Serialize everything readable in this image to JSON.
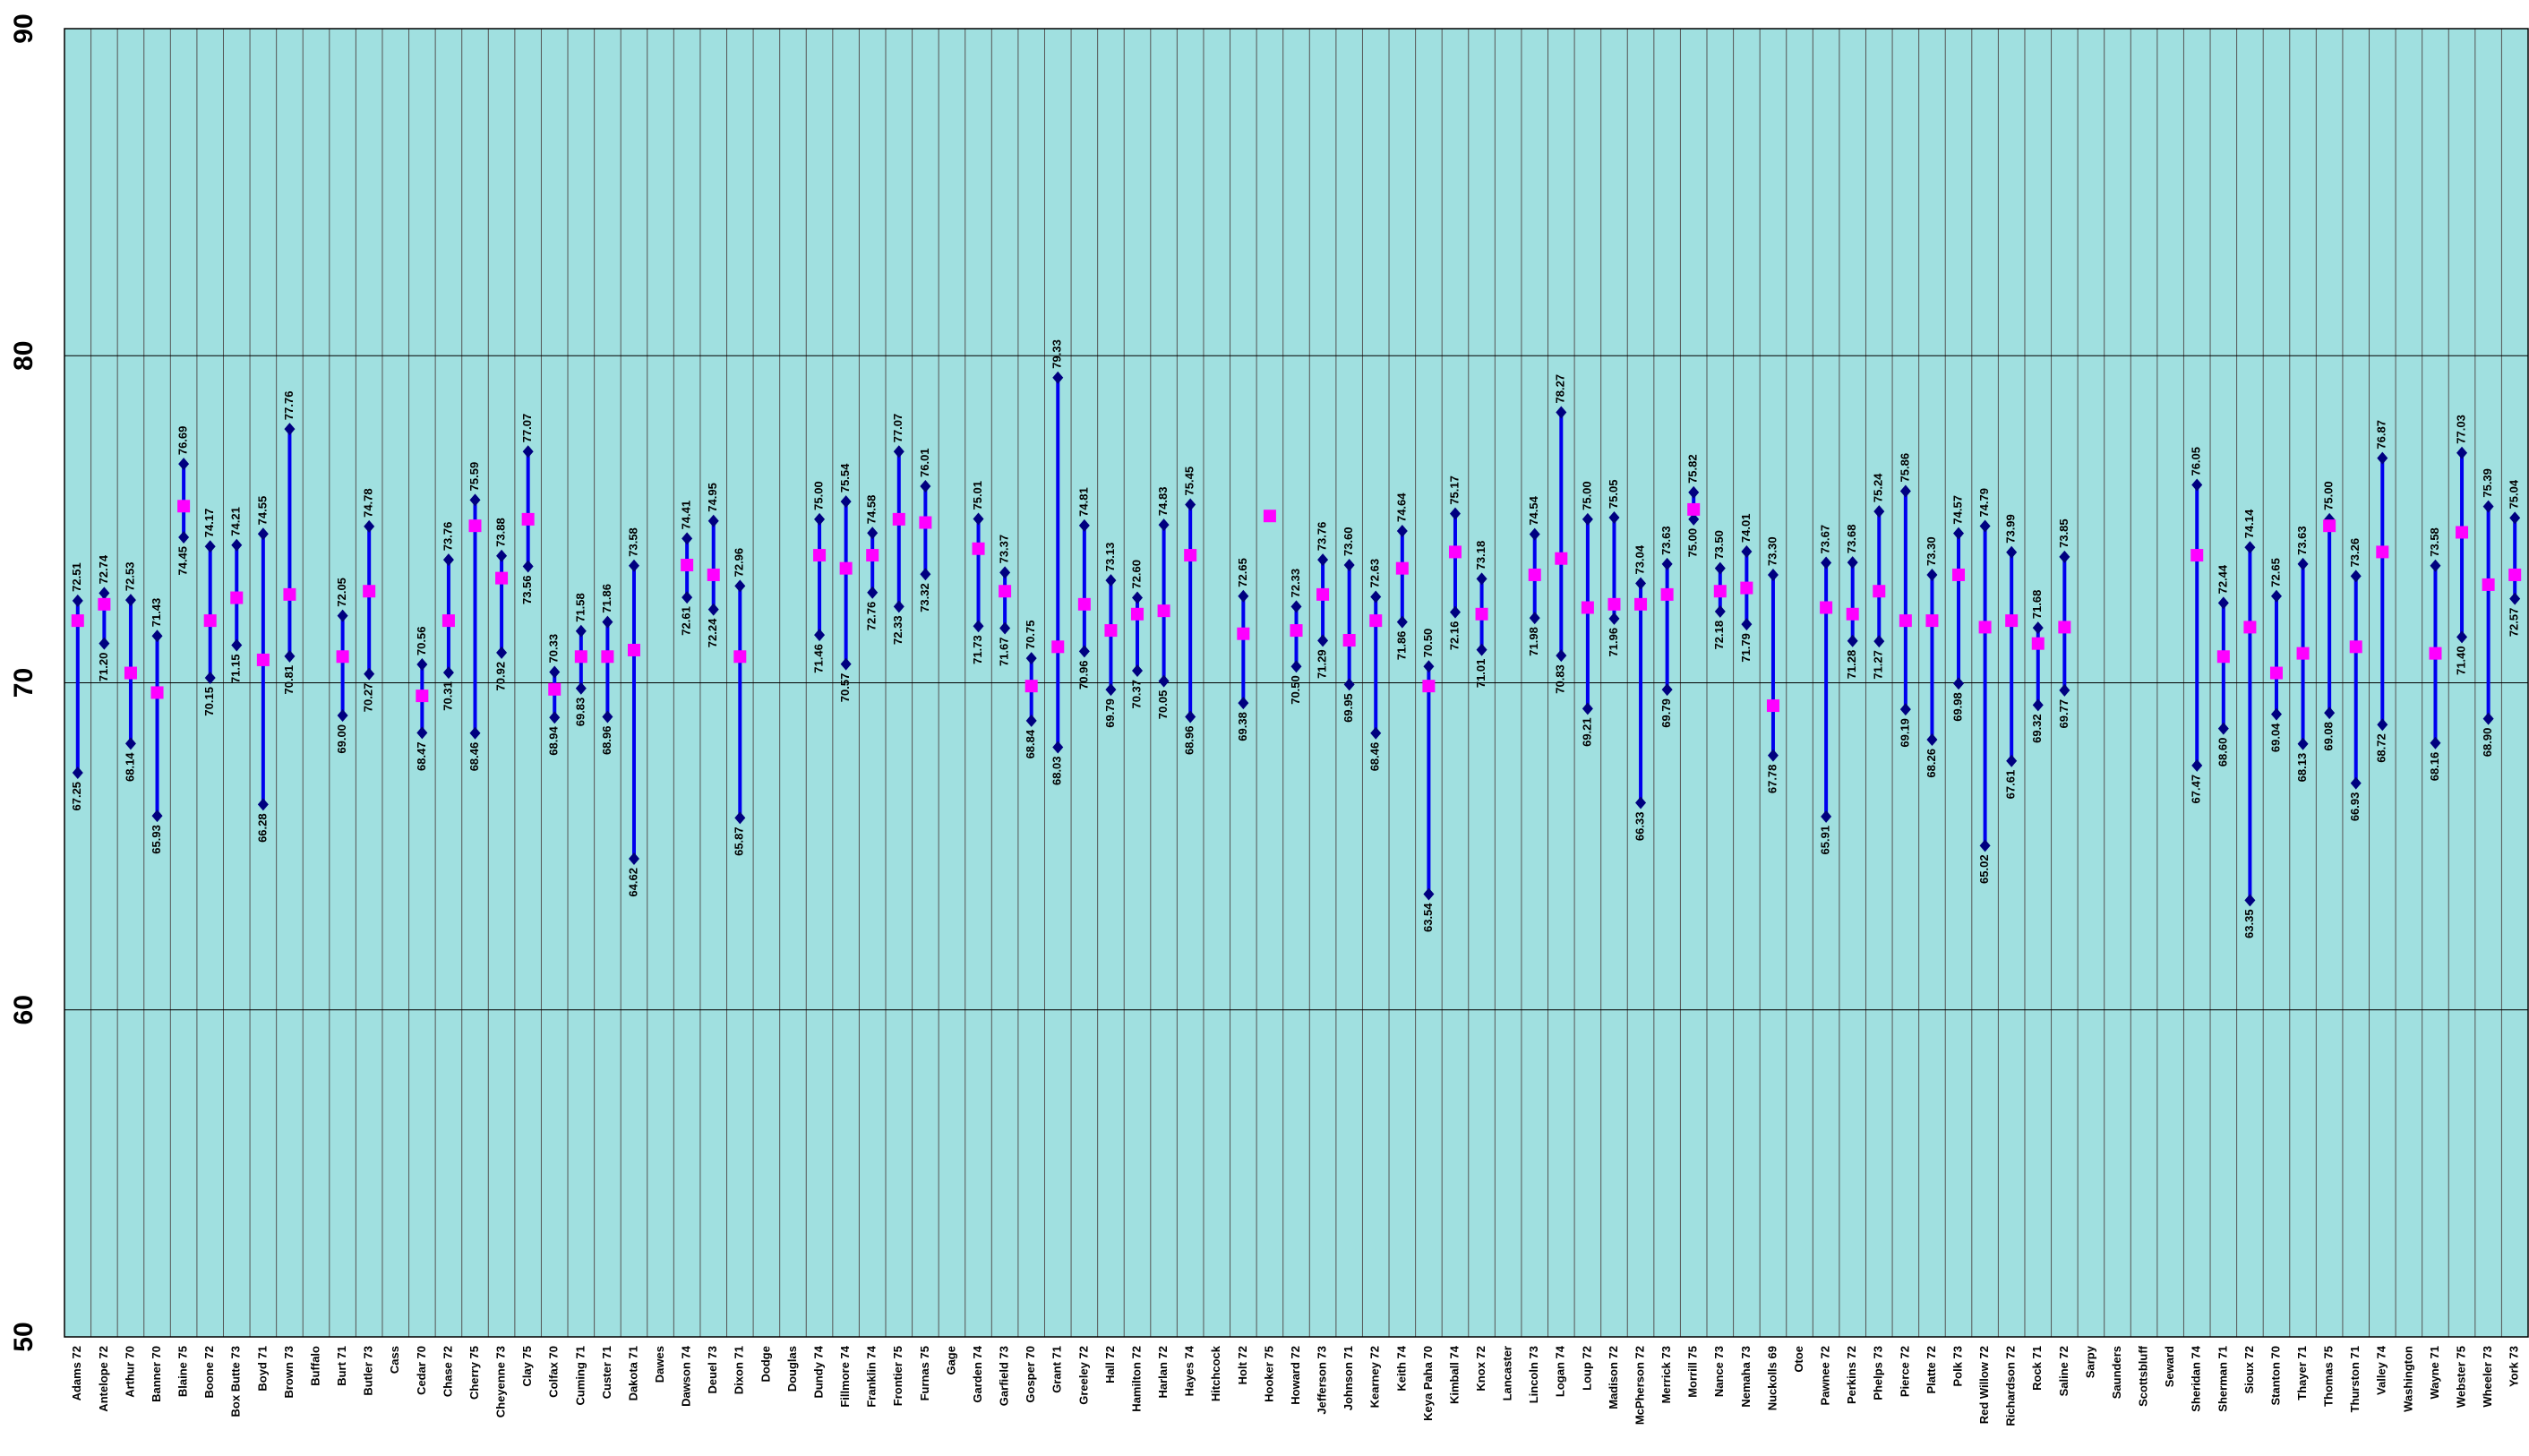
{
  "chart_data": {
    "type": "hilo",
    "categories": [
      "Adams 72",
      "Antelope 72",
      "Arthur 70",
      "Banner 70",
      "Blaine 75",
      "Boone 72",
      "Box Butte 73",
      "Boyd 71",
      "Brown 73",
      "Buffalo",
      "Burt 71",
      "Butler 73",
      "Cass",
      "Cedar 70",
      "Chase 72",
      "Cherry 75",
      "Cheyenne 73",
      "Clay 75",
      "Colfax 70",
      "Cuming 71",
      "Custer 71",
      "Dakota 71",
      "Dawes",
      "Dawson 74",
      "Deuel 73",
      "Dixon 71",
      "Dodge",
      "Douglas",
      "Dundy 74",
      "Fillmore 74",
      "Franklin 74",
      "Frontier 75",
      "Furnas 75",
      "Gage",
      "Garden 74",
      "Garfield 73",
      "Gosper 70",
      "Grant 71",
      "Greeley 72",
      "Hall 72",
      "Hamilton 72",
      "Harlan 72",
      "Hayes 74",
      "Hitchcock",
      "Holt 72",
      "Hooker 75",
      "Howard 72",
      "Jefferson 73",
      "Johnson 71",
      "Kearney 72",
      "Keith 74",
      "Keya Paha 70",
      "Kimball 74",
      "Knox 72",
      "Lancaster",
      "Lincoln 73",
      "Logan 74",
      "Loup 72",
      "Madison 72",
      "McPherson 72",
      "Merrick 73",
      "Morrill 75",
      "Nance 73",
      "Nemaha 73",
      "Nuckolls 69",
      "Otoe",
      "Pawnee 72",
      "Perkins 72",
      "Phelps 73",
      "Pierce 72",
      "Platte 72",
      "Polk 73",
      "Red Willow 72",
      "Richardson 72",
      "Rock 71",
      "Saline 72",
      "Sarpy",
      "Saunders",
      "Scottsbluff",
      "Seward",
      "Sheridan 74",
      "Sherman 71",
      "Sioux 72",
      "Stanton 70",
      "Thayer 71",
      "Thomas 75",
      "Thurston 71",
      "Valley 74",
      "Washington",
      "Wayne 71",
      "Webster 75",
      "Wheeler 73",
      "York 73"
    ],
    "line_color": "#0000ee",
    "series": [
      {
        "color": "#000080",
        "marker": "diamond",
        "values": [
          72.51,
          72.74,
          72.53,
          71.43,
          76.69,
          74.17,
          74.21,
          74.55,
          77.76,
          null,
          72.05,
          74.78,
          null,
          70.56,
          73.76,
          75.59,
          73.88,
          77.07,
          70.33,
          71.58,
          71.86,
          73.58,
          null,
          74.41,
          74.95,
          72.96,
          null,
          null,
          75.0,
          75.54,
          74.58,
          77.07,
          76.01,
          null,
          75.01,
          73.37,
          70.75,
          79.33,
          74.81,
          73.13,
          72.6,
          74.83,
          75.45,
          null,
          72.65,
          null,
          72.33,
          73.76,
          73.6,
          72.63,
          74.64,
          70.5,
          75.17,
          73.18,
          null,
          74.54,
          78.27,
          75.0,
          75.05,
          73.04,
          73.63,
          75.82,
          73.5,
          74.01,
          73.3,
          null,
          73.67,
          73.68,
          75.24,
          75.86,
          73.3,
          74.57,
          74.79,
          73.99,
          71.68,
          73.85,
          null,
          null,
          null,
          null,
          76.05,
          72.44,
          74.14,
          72.65,
          73.63,
          75.0,
          73.26,
          76.87,
          null,
          73.58,
          77.03,
          75.39,
          75.04
        ],
        "value_labels": [
          "72.51",
          "72.74",
          "72.53",
          "71.43",
          "76.69",
          "74.17",
          "74.21",
          "74.55",
          "77.76",
          null,
          "72.05",
          "74.78",
          null,
          "70.56",
          "73.76",
          "75.59",
          "73.88",
          "77.07",
          "70.33",
          "71.58",
          "71.86",
          "73.58",
          null,
          "74.41",
          "74.95",
          "72.96",
          null,
          null,
          "75.00",
          "75.54",
          "74.58",
          "77.07",
          "76.01",
          null,
          "75.01",
          "73.37",
          "70.75",
          "79.33",
          "74.81",
          "73.13",
          "72.60",
          "74.83",
          "75.45",
          null,
          "72.65",
          null,
          "72.33",
          "73.76",
          "73.60",
          "72.63",
          "74.64",
          "70.50",
          "75.17",
          "73.18",
          null,
          "74.54",
          "78.27",
          "75.00",
          "75.05",
          "73.04",
          "73.63",
          "75.82",
          "73.50",
          "74.01",
          "73.30",
          null,
          "73.67",
          "73.68",
          "75.24",
          "75.86",
          "73.30",
          "74.57",
          "74.79",
          "73.99",
          "71.68",
          "73.85",
          null,
          null,
          null,
          null,
          "76.05",
          "72.44",
          "74.14",
          "72.65",
          "73.63",
          "75.00",
          "73.26",
          "76.87",
          null,
          "73.58",
          "77.03",
          "75.39",
          "75.04"
        ]
      },
      {
        "color": "#000080",
        "marker": "diamond",
        "values": [
          67.25,
          71.2,
          68.14,
          65.93,
          74.45,
          70.15,
          71.15,
          66.28,
          70.81,
          null,
          69.0,
          70.27,
          null,
          68.47,
          70.31,
          68.46,
          70.92,
          73.56,
          68.94,
          69.83,
          68.96,
          64.62,
          null,
          72.61,
          72.24,
          65.87,
          null,
          null,
          71.46,
          70.57,
          72.76,
          72.33,
          73.32,
          null,
          71.73,
          71.67,
          68.84,
          68.03,
          70.96,
          69.79,
          70.37,
          70.05,
          68.96,
          null,
          69.38,
          null,
          70.5,
          71.29,
          69.95,
          68.46,
          71.86,
          63.54,
          72.16,
          71.01,
          null,
          71.98,
          70.83,
          69.21,
          71.96,
          66.33,
          69.79,
          75.0,
          72.18,
          71.79,
          67.78,
          null,
          65.91,
          71.28,
          71.27,
          69.19,
          68.26,
          69.98,
          65.02,
          67.61,
          69.32,
          69.77,
          null,
          null,
          null,
          null,
          67.47,
          68.6,
          63.35,
          69.04,
          68.13,
          69.08,
          66.93,
          68.72,
          null,
          68.16,
          71.4,
          68.9,
          72.57
        ],
        "value_labels": [
          "67.25",
          "71.20",
          "68.14",
          "65.93",
          "74.45",
          "70.15",
          "71.15",
          "66.28",
          "70.81",
          null,
          "69.00",
          "70.27",
          null,
          "68.47",
          "70.31",
          "68.46",
          "70.92",
          "73.56",
          "68.94",
          "69.83",
          "68.96",
          "64.62",
          null,
          "72.61",
          "72.24",
          "65.87",
          null,
          null,
          "71.46",
          "70.57",
          "72.76",
          "72.33",
          "73.32",
          null,
          "71.73",
          "71.67",
          "68.84",
          "68.03",
          "70.96",
          "69.79",
          "70.37",
          "70.05",
          "68.96",
          null,
          "69.38",
          null,
          "70.50",
          "71.29",
          "69.95",
          "68.46",
          "71.86",
          "63.54",
          "72.16",
          "71.01",
          null,
          "71.98",
          "70.83",
          "69.21",
          "71.96",
          "66.33",
          "69.79",
          "75.00",
          "72.18",
          "71.79",
          "67.78",
          null,
          "65.91",
          "71.28",
          "71.27",
          "69.19",
          "68.26",
          "69.98",
          "65.02",
          "67.61",
          "69.32",
          "69.77",
          null,
          null,
          null,
          null,
          "67.47",
          "68.60",
          "63.35",
          "69.04",
          "68.13",
          "69.08",
          "66.93",
          "68.72",
          null,
          "68.16",
          "71.40",
          "68.90",
          "72.57"
        ]
      },
      {
        "color": "#ff00ff",
        "marker": "square",
        "values": [
          71.9,
          72.4,
          70.3,
          69.7,
          75.4,
          71.9,
          72.6,
          70.7,
          72.7,
          null,
          70.8,
          72.8,
          null,
          69.6,
          71.9,
          74.8,
          73.2,
          75.0,
          69.8,
          70.8,
          70.8,
          71.0,
          null,
          73.6,
          73.3,
          70.8,
          null,
          null,
          73.9,
          73.5,
          73.9,
          75.0,
          74.9,
          null,
          74.1,
          72.8,
          69.9,
          71.1,
          72.4,
          71.6,
          72.1,
          72.2,
          73.9,
          null,
          71.5,
          75.1,
          71.6,
          72.7,
          71.3,
          71.9,
          73.5,
          69.9,
          74.0,
          72.1,
          null,
          73.3,
          73.8,
          72.3,
          72.4,
          72.4,
          72.7,
          75.3,
          72.8,
          72.9,
          69.3,
          null,
          72.3,
          72.1,
          72.8,
          71.9,
          71.9,
          73.3,
          71.7,
          71.9,
          71.2,
          71.7,
          null,
          null,
          null,
          null,
          73.9,
          70.8,
          71.7,
          70.3,
          70.9,
          74.8,
          71.1,
          74.0,
          null,
          70.9,
          74.6,
          73.0,
          73.3
        ]
      }
    ],
    "ylim": [
      50,
      90
    ],
    "yticks": [
      50,
      60,
      70,
      80,
      90
    ],
    "grid": true,
    "background": "#a0e0e0"
  }
}
